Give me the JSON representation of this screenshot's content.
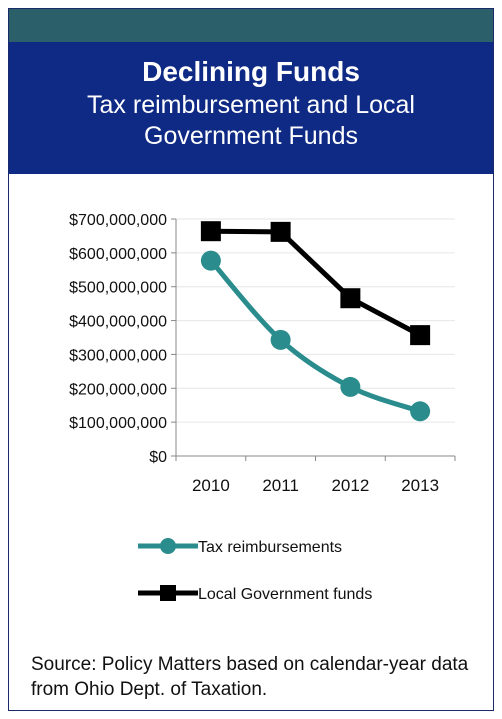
{
  "header": {
    "title": "Declining Funds",
    "subtitle": "Tax reimbursement and Local Government Funds"
  },
  "chart_data": {
    "type": "line",
    "categories": [
      "2010",
      "2011",
      "2012",
      "2013"
    ],
    "series": [
      {
        "name": "Tax reimbursements",
        "values": [
          577000000,
          343000000,
          204000000,
          132000000
        ],
        "color": "#2a8c8c",
        "marker": "circle"
      },
      {
        "name": "Local Government funds",
        "values": [
          664000000,
          662000000,
          466000000,
          357000000
        ],
        "color": "#000000",
        "marker": "square"
      }
    ],
    "y_ticks": [
      "$700,000,000",
      "$600,000,000",
      "$500,000,000",
      "$400,000,000",
      "$300,000,000",
      "$200,000,000",
      "$100,000,000",
      "$0"
    ],
    "ylim": [
      0,
      700000000
    ],
    "grid": true,
    "legend_position": "bottom"
  },
  "footer": {
    "source": "Source: Policy Matters based on calendar-year data from Ohio Dept. of Taxation."
  }
}
